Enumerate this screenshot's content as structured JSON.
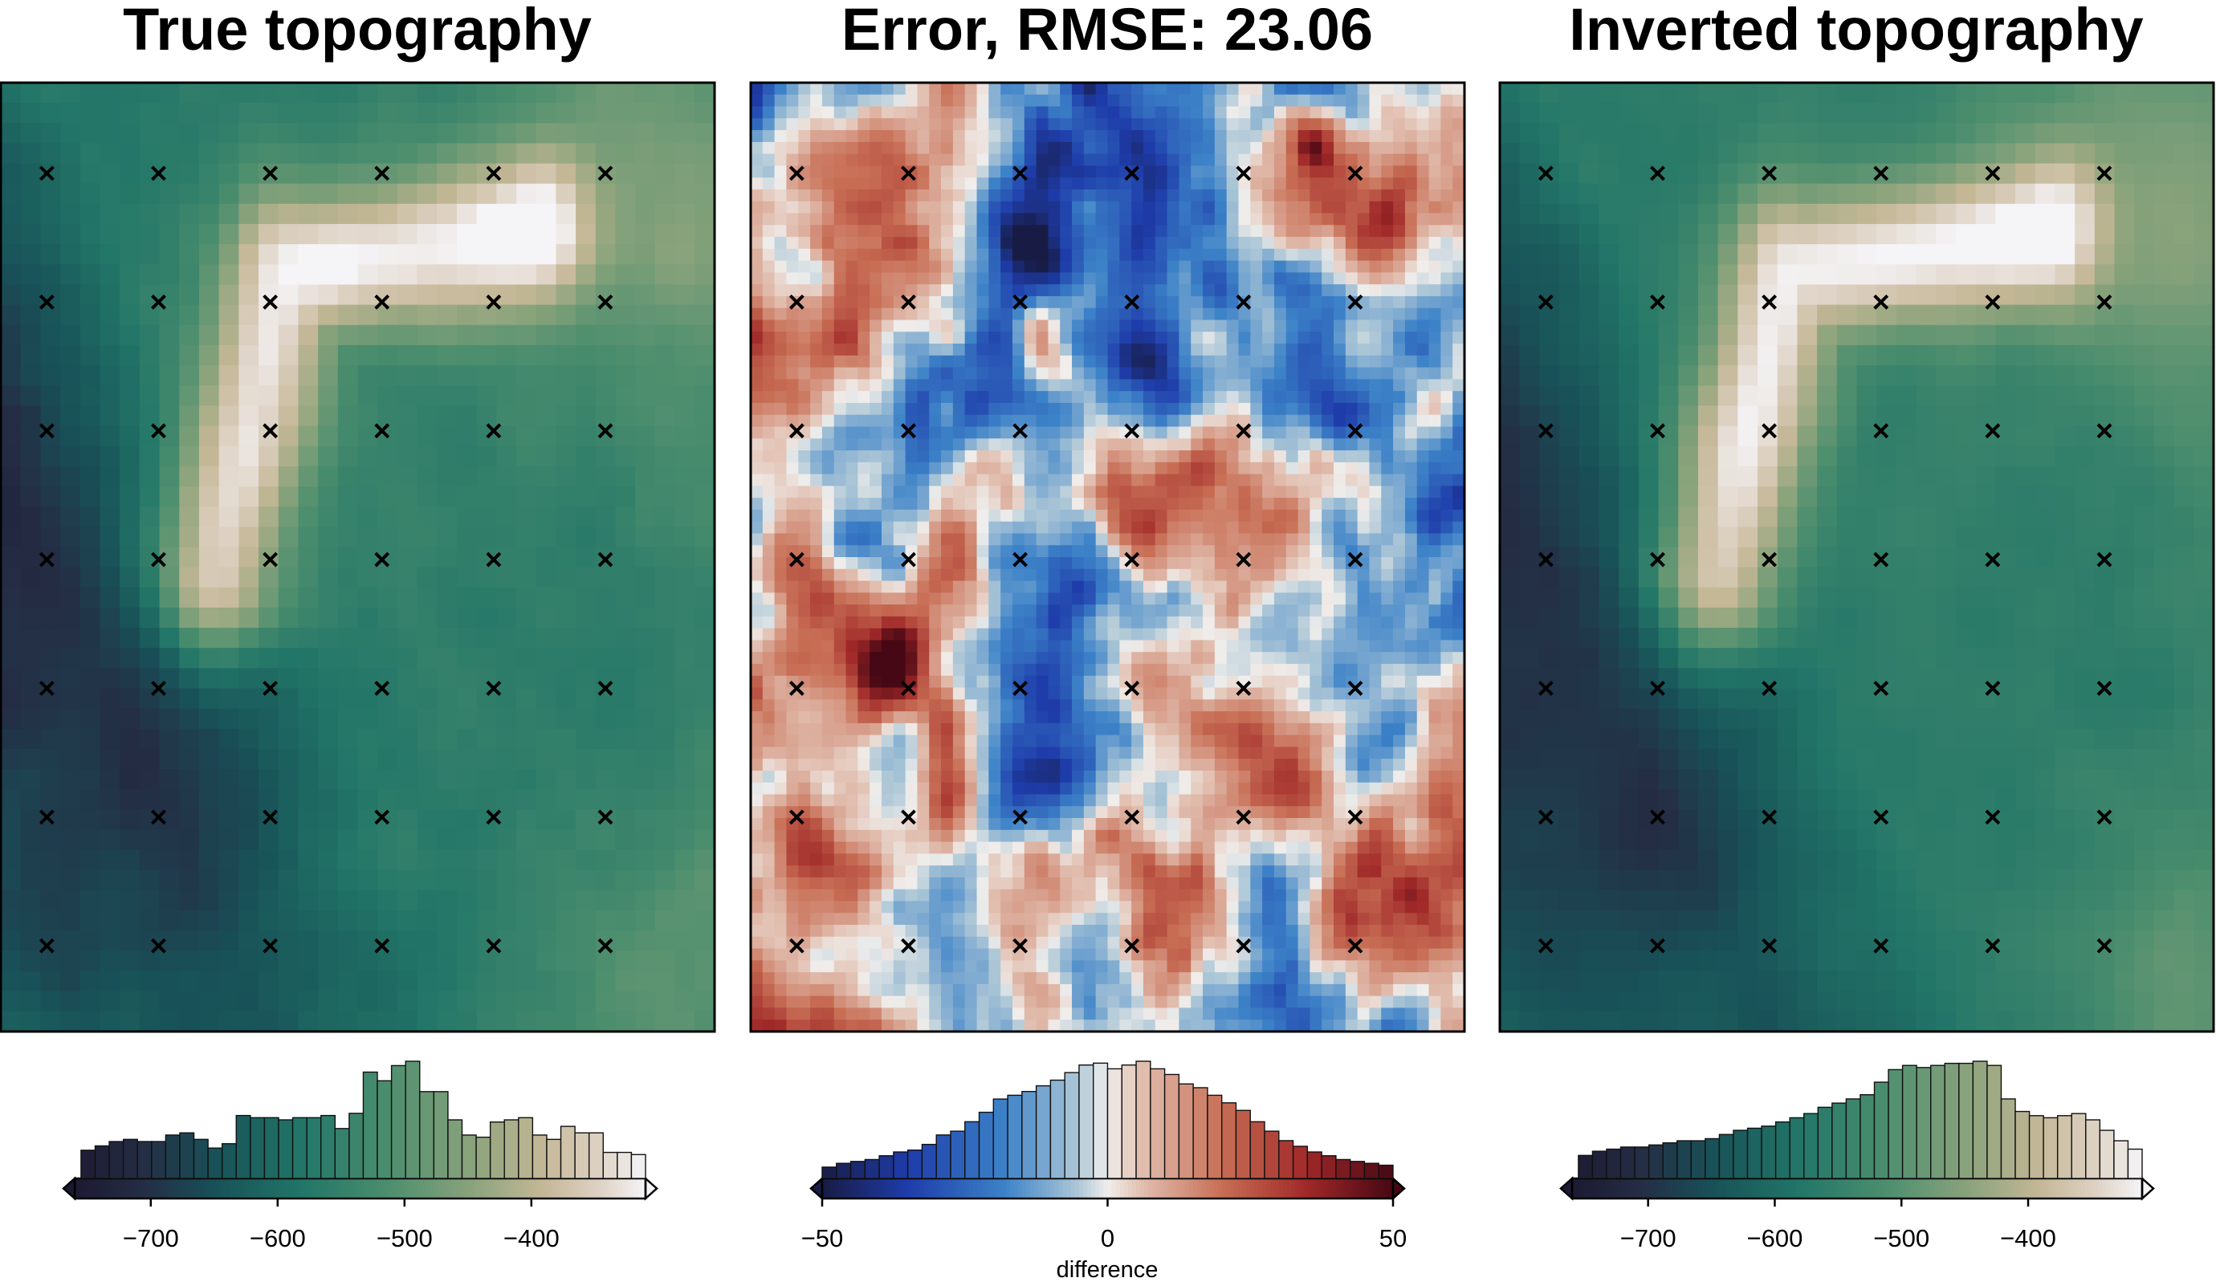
{
  "figure": {
    "panels": [
      {
        "id": "true",
        "title": "True topography",
        "cmap": "rain"
      },
      {
        "id": "error",
        "title": "Error, RMSE: 23.06",
        "cmap": "balance"
      },
      {
        "id": "inverted",
        "title": "Inverted topography",
        "cmap": "rain"
      }
    ],
    "colorbars": [
      {
        "panel": "true",
        "range": [
          -760,
          -310
        ],
        "ticks": [
          -700,
          -600,
          -500,
          -400
        ],
        "tick_labels": [
          "−700",
          "−600",
          "−500",
          "−400"
        ],
        "label": ""
      },
      {
        "panel": "error",
        "range": [
          -50,
          50
        ],
        "ticks": [
          -50,
          0,
          50
        ],
        "tick_labels": [
          "−50",
          "0",
          "50"
        ],
        "label": "difference"
      },
      {
        "panel": "inverted",
        "range": [
          -760,
          -310
        ],
        "ticks": [
          -700,
          -600,
          -500,
          -400
        ],
        "tick_labels": [
          "−700",
          "−600",
          "−500",
          "−400"
        ],
        "label": ""
      }
    ]
  },
  "chart_data": [
    {
      "type": "heatmap",
      "title": "True topography",
      "grid_size": [
        36,
        47
      ],
      "value_range": [
        -760,
        -310
      ],
      "marker": "x",
      "marker_grid": {
        "cols": 6,
        "rows": 7
      },
      "histogram": {
        "bins": [
          -755,
          -310
        ],
        "counts": [
          13,
          15,
          17,
          18,
          17,
          17,
          20,
          21,
          18,
          14,
          16,
          29,
          28,
          28,
          27,
          28,
          28,
          29,
          23,
          30,
          49,
          45,
          52,
          54,
          40,
          40,
          27,
          20,
          19,
          26,
          27,
          28,
          20,
          18,
          24,
          21,
          21,
          12,
          12,
          11
        ]
      }
    },
    {
      "type": "heatmap",
      "title": "Error, RMSE: 23.06",
      "rmse": 23.06,
      "value_range": [
        -50,
        50
      ],
      "colorbar_label": "difference",
      "marker": "x",
      "marker_grid": {
        "cols": 6,
        "rows": 7
      },
      "histogram": {
        "bins": [
          -50,
          50
        ],
        "counts": [
          6,
          8,
          9,
          10,
          12,
          14,
          15,
          18,
          23,
          25,
          30,
          35,
          42,
          44,
          46,
          49,
          52,
          56,
          60,
          61,
          58,
          60,
          62,
          58,
          55,
          50,
          48,
          44,
          40,
          36,
          30,
          25,
          20,
          17,
          14,
          12,
          10,
          9,
          8,
          7
        ]
      }
    },
    {
      "type": "heatmap",
      "title": "Inverted topography",
      "grid_size": [
        36,
        47
      ],
      "value_range": [
        -760,
        -310
      ],
      "marker": "x",
      "marker_grid": {
        "cols": 6,
        "rows": 7
      },
      "histogram": {
        "bins": [
          -755,
          -310
        ],
        "counts": [
          11,
          13,
          14,
          15,
          15,
          16,
          17,
          18,
          18,
          19,
          21,
          23,
          24,
          25,
          27,
          29,
          31,
          34,
          36,
          38,
          40,
          46,
          52,
          54,
          53,
          54,
          55,
          55,
          56,
          54,
          38,
          32,
          30,
          29,
          30,
          31,
          28,
          23,
          18,
          14
        ]
      }
    }
  ]
}
